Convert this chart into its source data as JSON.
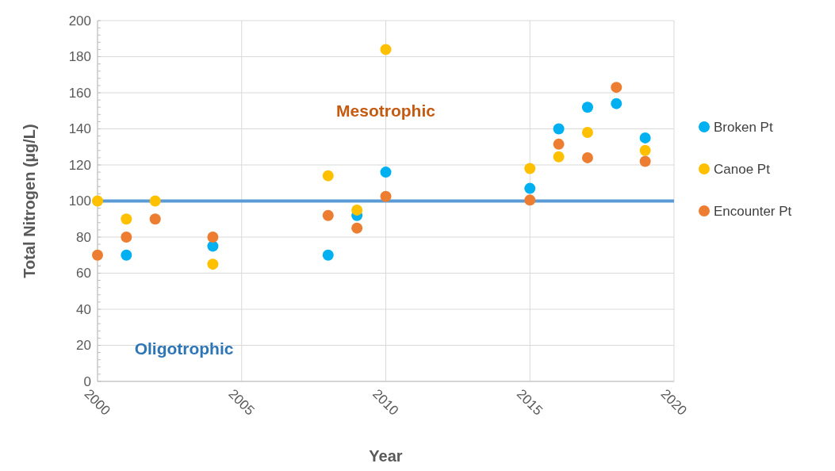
{
  "chart_data": {
    "type": "scatter",
    "xlabel": "Year",
    "ylabel": "Total Nitrogen (µg/L)",
    "xlim": [
      2000,
      2020
    ],
    "xticks": [
      2000,
      2005,
      2010,
      2015,
      2020
    ],
    "ylim": [
      0,
      200
    ],
    "yticks": [
      0,
      20,
      40,
      60,
      80,
      100,
      120,
      140,
      160,
      180,
      200
    ],
    "grid": true,
    "legend": "right",
    "marker": "circle",
    "series": [
      {
        "name": "Broken Pt",
        "color": "#00b0f0",
        "x": [
          2001,
          2004,
          2008,
          2009,
          2010,
          2015,
          2016,
          2017,
          2018,
          2019
        ],
        "values": [
          70,
          75,
          70,
          92,
          116,
          107,
          140,
          152,
          154,
          135
        ]
      },
      {
        "name": "Canoe Pt",
        "color": "#ffc000",
        "x": [
          2000,
          2001,
          2002,
          2004,
          2008,
          2009,
          2010,
          2015,
          2016,
          2017,
          2019
        ],
        "values": [
          100,
          90,
          100,
          65,
          114,
          95,
          184,
          118,
          124.5,
          138,
          128
        ]
      },
      {
        "name": "Encounter Pt",
        "color": "#ed7d31",
        "x": [
          2000,
          2001,
          2002,
          2004,
          2008,
          2009,
          2010,
          2015,
          2016,
          2017,
          2018,
          2019
        ],
        "values": [
          70,
          80,
          90,
          80,
          92,
          85,
          102.5,
          100.5,
          131.5,
          124,
          163,
          122
        ]
      }
    ],
    "ref_lines": [
      {
        "axis": "y",
        "value": 100,
        "color": "#5b9bd5"
      }
    ],
    "annotations": [
      "Mesotrophic",
      "Oligotrophic"
    ]
  }
}
